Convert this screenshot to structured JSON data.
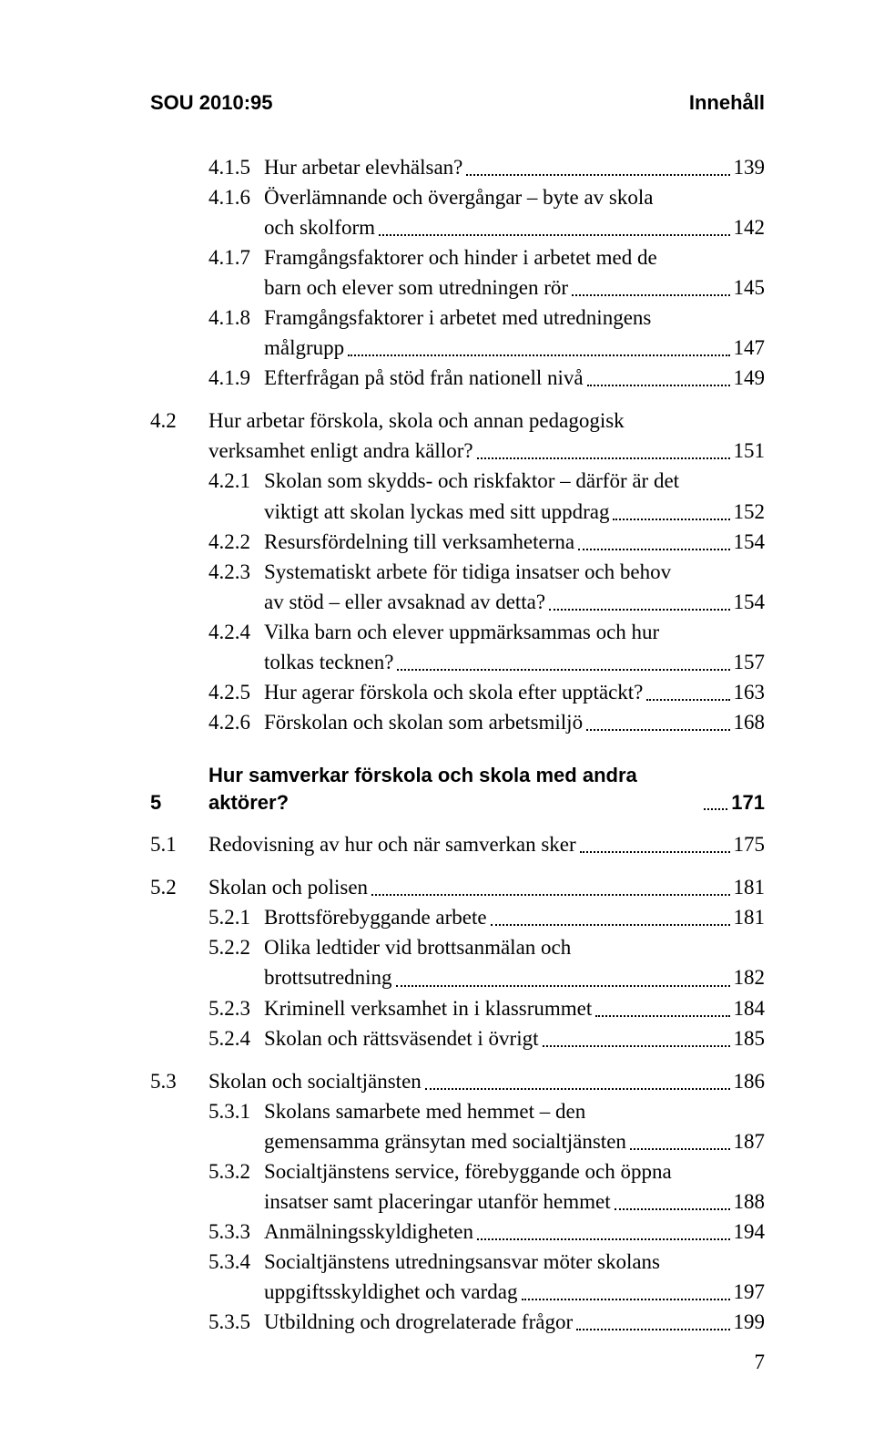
{
  "header": {
    "left": "SOU 2010:95",
    "right": "Innehåll"
  },
  "page_number": "7",
  "colors": {
    "text": "#000000",
    "background": "#ffffff",
    "leader": "#000000"
  },
  "typography": {
    "body_font": "Garamond / Times New Roman serif",
    "body_size_pt": 23,
    "header_font": "Arial sans-serif",
    "header_size_pt": 22,
    "heading_weight": "bold"
  },
  "entries": [
    {
      "n": "4.1.5",
      "t": "Hur arbetar elevhälsan?",
      "p": "139",
      "lvl": 2
    },
    {
      "n": "4.1.6",
      "t": "Överlämnande och övergångar – byte av skola",
      "p": "",
      "lvl": 2,
      "noleader": true
    },
    {
      "n": "",
      "t": "och skolform",
      "p": "142",
      "lvl": "c2"
    },
    {
      "n": "4.1.7",
      "t": "Framgångsfaktorer och hinder i arbetet med de",
      "p": "",
      "lvl": 2,
      "noleader": true
    },
    {
      "n": "",
      "t": "barn och elever som utredningen rör",
      "p": "145",
      "lvl": "c2"
    },
    {
      "n": "4.1.8",
      "t": "Framgångsfaktorer i arbetet med utredningens",
      "p": "",
      "lvl": 2,
      "noleader": true
    },
    {
      "n": "",
      "t": "målgrupp",
      "p": "147",
      "lvl": "c2"
    },
    {
      "n": "4.1.9",
      "t": "Efterfrågan på stöd från nationell nivå",
      "p": "149",
      "lvl": 2
    },
    {
      "gap": true
    },
    {
      "n": "4.2",
      "t": "Hur arbetar förskola, skola och annan pedagogisk",
      "p": "",
      "lvl": 1,
      "noleader": true
    },
    {
      "n": "",
      "t": "verksamhet enligt andra källor?",
      "p": "151",
      "lvl": "c1"
    },
    {
      "n": "4.2.1",
      "t": "Skolan som skydds- och riskfaktor – därför är det",
      "p": "",
      "lvl": 2,
      "noleader": true
    },
    {
      "n": "",
      "t": "viktigt att skolan lyckas med sitt uppdrag",
      "p": "152",
      "lvl": "c2"
    },
    {
      "n": "4.2.2",
      "t": "Resursfördelning till verksamheterna",
      "p": "154",
      "lvl": 2
    },
    {
      "n": "4.2.3",
      "t": "Systematiskt arbete för tidiga insatser och behov",
      "p": "",
      "lvl": 2,
      "noleader": true
    },
    {
      "n": "",
      "t": "av stöd – eller avsaknad av detta?",
      "p": "154",
      "lvl": "c2"
    },
    {
      "n": "4.2.4",
      "t": "Vilka barn och elever uppmärksammas och hur",
      "p": "",
      "lvl": 2,
      "noleader": true
    },
    {
      "n": "",
      "t": "tolkas tecknen?",
      "p": "157",
      "lvl": "c2"
    },
    {
      "n": "4.2.5",
      "t": "Hur agerar förskola och skola efter upptäckt?",
      "p": "163",
      "lvl": 2
    },
    {
      "n": "4.2.6",
      "t": "Förskolan och skolan som arbetsmiljö",
      "p": "168",
      "lvl": 2
    },
    {
      "gaplg": true
    },
    {
      "n": "5",
      "t": "Hur samverkar förskola och skola med andra aktörer?",
      "p": "171",
      "lvl": 0,
      "bold": true
    },
    {
      "gap": true
    },
    {
      "n": "5.1",
      "t": "Redovisning av hur och när samverkan sker",
      "p": "175",
      "lvl": 1
    },
    {
      "gap": true
    },
    {
      "n": "5.2",
      "t": "Skolan och polisen",
      "p": "181",
      "lvl": 1
    },
    {
      "n": "5.2.1",
      "t": "Brottsförebyggande arbete",
      "p": "181",
      "lvl": 2
    },
    {
      "n": "5.2.2",
      "t": "Olika ledtider vid brottsanmälan och",
      "p": "",
      "lvl": 2,
      "noleader": true
    },
    {
      "n": "",
      "t": "brottsutredning",
      "p": "182",
      "lvl": "c2"
    },
    {
      "n": "5.2.3",
      "t": "Kriminell verksamhet in i klassrummet",
      "p": "184",
      "lvl": 2
    },
    {
      "n": "5.2.4",
      "t": "Skolan och rättsväsendet i övrigt",
      "p": "185",
      "lvl": 2
    },
    {
      "gap": true
    },
    {
      "n": "5.3",
      "t": "Skolan och socialtjänsten",
      "p": "186",
      "lvl": 1
    },
    {
      "n": "5.3.1",
      "t": "Skolans samarbete med hemmet – den",
      "p": "",
      "lvl": 2,
      "noleader": true
    },
    {
      "n": "",
      "t": "gemensamma gränsytan med socialtjänsten",
      "p": "187",
      "lvl": "c2"
    },
    {
      "n": "5.3.2",
      "t": "Socialtjänstens service, förebyggande och öppna",
      "p": "",
      "lvl": 2,
      "noleader": true
    },
    {
      "n": "",
      "t": "insatser samt placeringar utanför hemmet",
      "p": "188",
      "lvl": "c2"
    },
    {
      "n": "5.3.3",
      "t": "Anmälningsskyldigheten",
      "p": "194",
      "lvl": 2
    },
    {
      "n": "5.3.4",
      "t": "Socialtjänstens utredningsansvar möter skolans",
      "p": "",
      "lvl": 2,
      "noleader": true
    },
    {
      "n": "",
      "t": "uppgiftsskyldighet och vardag",
      "p": "197",
      "lvl": "c2"
    },
    {
      "n": "5.3.5",
      "t": "Utbildning och drogrelaterade frågor",
      "p": "199",
      "lvl": 2
    }
  ]
}
